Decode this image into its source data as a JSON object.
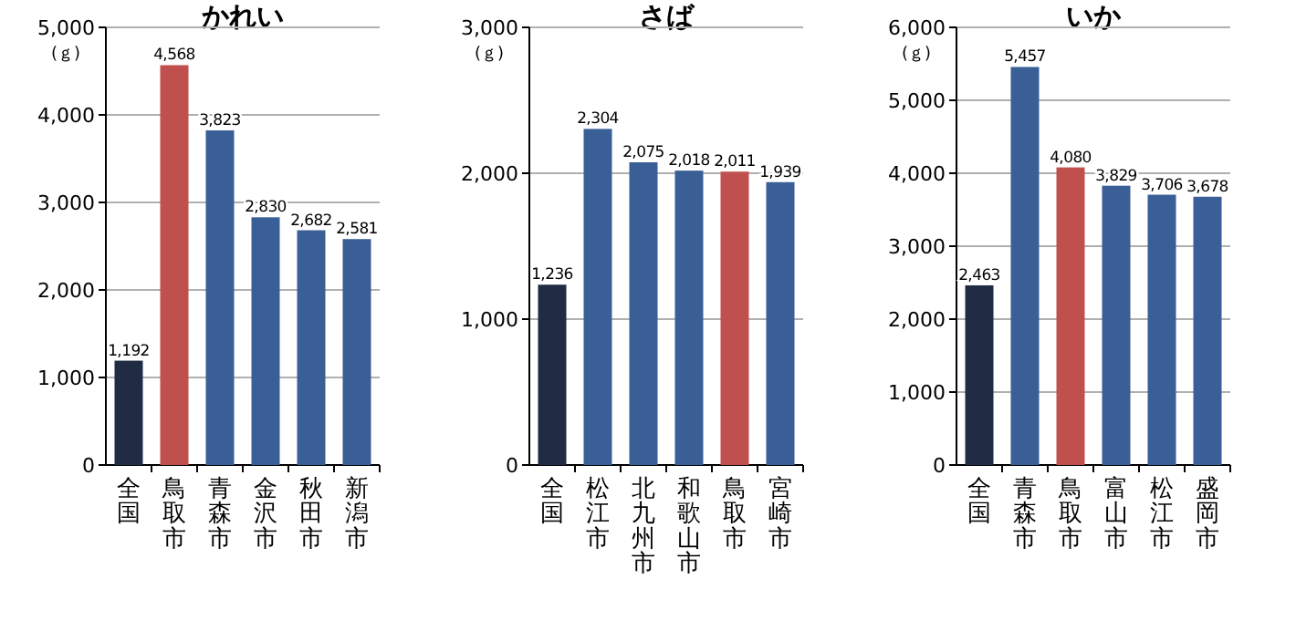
{
  "chart_data": [
    {
      "type": "bar",
      "title": "かれい",
      "ylabel": "(ｇ)",
      "categories": [
        "全国",
        "鳥取市",
        "青森市",
        "金沢市",
        "秋田市",
        "新潟市"
      ],
      "values": [
        1192,
        4568,
        3823,
        2830,
        2682,
        2581
      ],
      "colors": [
        "#1f2c44",
        "#c0504d",
        "#3a5f96",
        "#3a5f96",
        "#3a5f96",
        "#3a5f96"
      ],
      "ylim": [
        0,
        5000
      ],
      "yticks": [
        {
          "value": 0,
          "label": "0"
        },
        {
          "value": 1000,
          "label": "1,000"
        },
        {
          "value": 2000,
          "label": "2,000"
        },
        {
          "value": 3000,
          "label": "3,000"
        },
        {
          "value": 4000,
          "label": "4,000"
        },
        {
          "value": 5000,
          "label": "5,000"
        }
      ],
      "grid": "y",
      "value_labels": [
        "1,192",
        "4,568",
        "3,823",
        "2,830",
        "2,682",
        "2,581"
      ]
    },
    {
      "type": "bar",
      "title": "さば",
      "ylabel": "(ｇ)",
      "categories": [
        "全国",
        "松江市",
        "北九州市",
        "和歌山市",
        "鳥取市",
        "宮崎市"
      ],
      "values": [
        1236,
        2304,
        2075,
        2018,
        2011,
        1939
      ],
      "colors": [
        "#1f2c44",
        "#3a5f96",
        "#3a5f96",
        "#3a5f96",
        "#c0504d",
        "#3a5f96"
      ],
      "ylim": [
        0,
        3000
      ],
      "yticks": [
        {
          "value": 0,
          "label": "0"
        },
        {
          "value": 1000,
          "label": "1,000"
        },
        {
          "value": 2000,
          "label": "2,000"
        },
        {
          "value": 3000,
          "label": "3,000"
        }
      ],
      "grid": "y",
      "value_labels": [
        "1,236",
        "2,304",
        "2,075",
        "2,018",
        "2,011",
        "1,939"
      ]
    },
    {
      "type": "bar",
      "title": "いか",
      "ylabel": "(ｇ)",
      "categories": [
        "全国",
        "青森市",
        "鳥取市",
        "富山市",
        "松江市",
        "盛岡市"
      ],
      "values": [
        2463,
        5457,
        4080,
        3829,
        3706,
        3678
      ],
      "colors": [
        "#1f2c44",
        "#3a5f96",
        "#c0504d",
        "#3a5f96",
        "#3a5f96",
        "#3a5f96"
      ],
      "ylim": [
        0,
        6000
      ],
      "yticks": [
        {
          "value": 0,
          "label": "0"
        },
        {
          "value": 1000,
          "label": "1,000"
        },
        {
          "value": 2000,
          "label": "2,000"
        },
        {
          "value": 3000,
          "label": "3,000"
        },
        {
          "value": 4000,
          "label": "4,000"
        },
        {
          "value": 5000,
          "label": "5,000"
        },
        {
          "value": 6000,
          "label": "6,000"
        }
      ],
      "grid": "y",
      "value_labels": [
        "2,463",
        "5,457",
        "4,080",
        "3,829",
        "3,706",
        "3,678"
      ]
    }
  ]
}
